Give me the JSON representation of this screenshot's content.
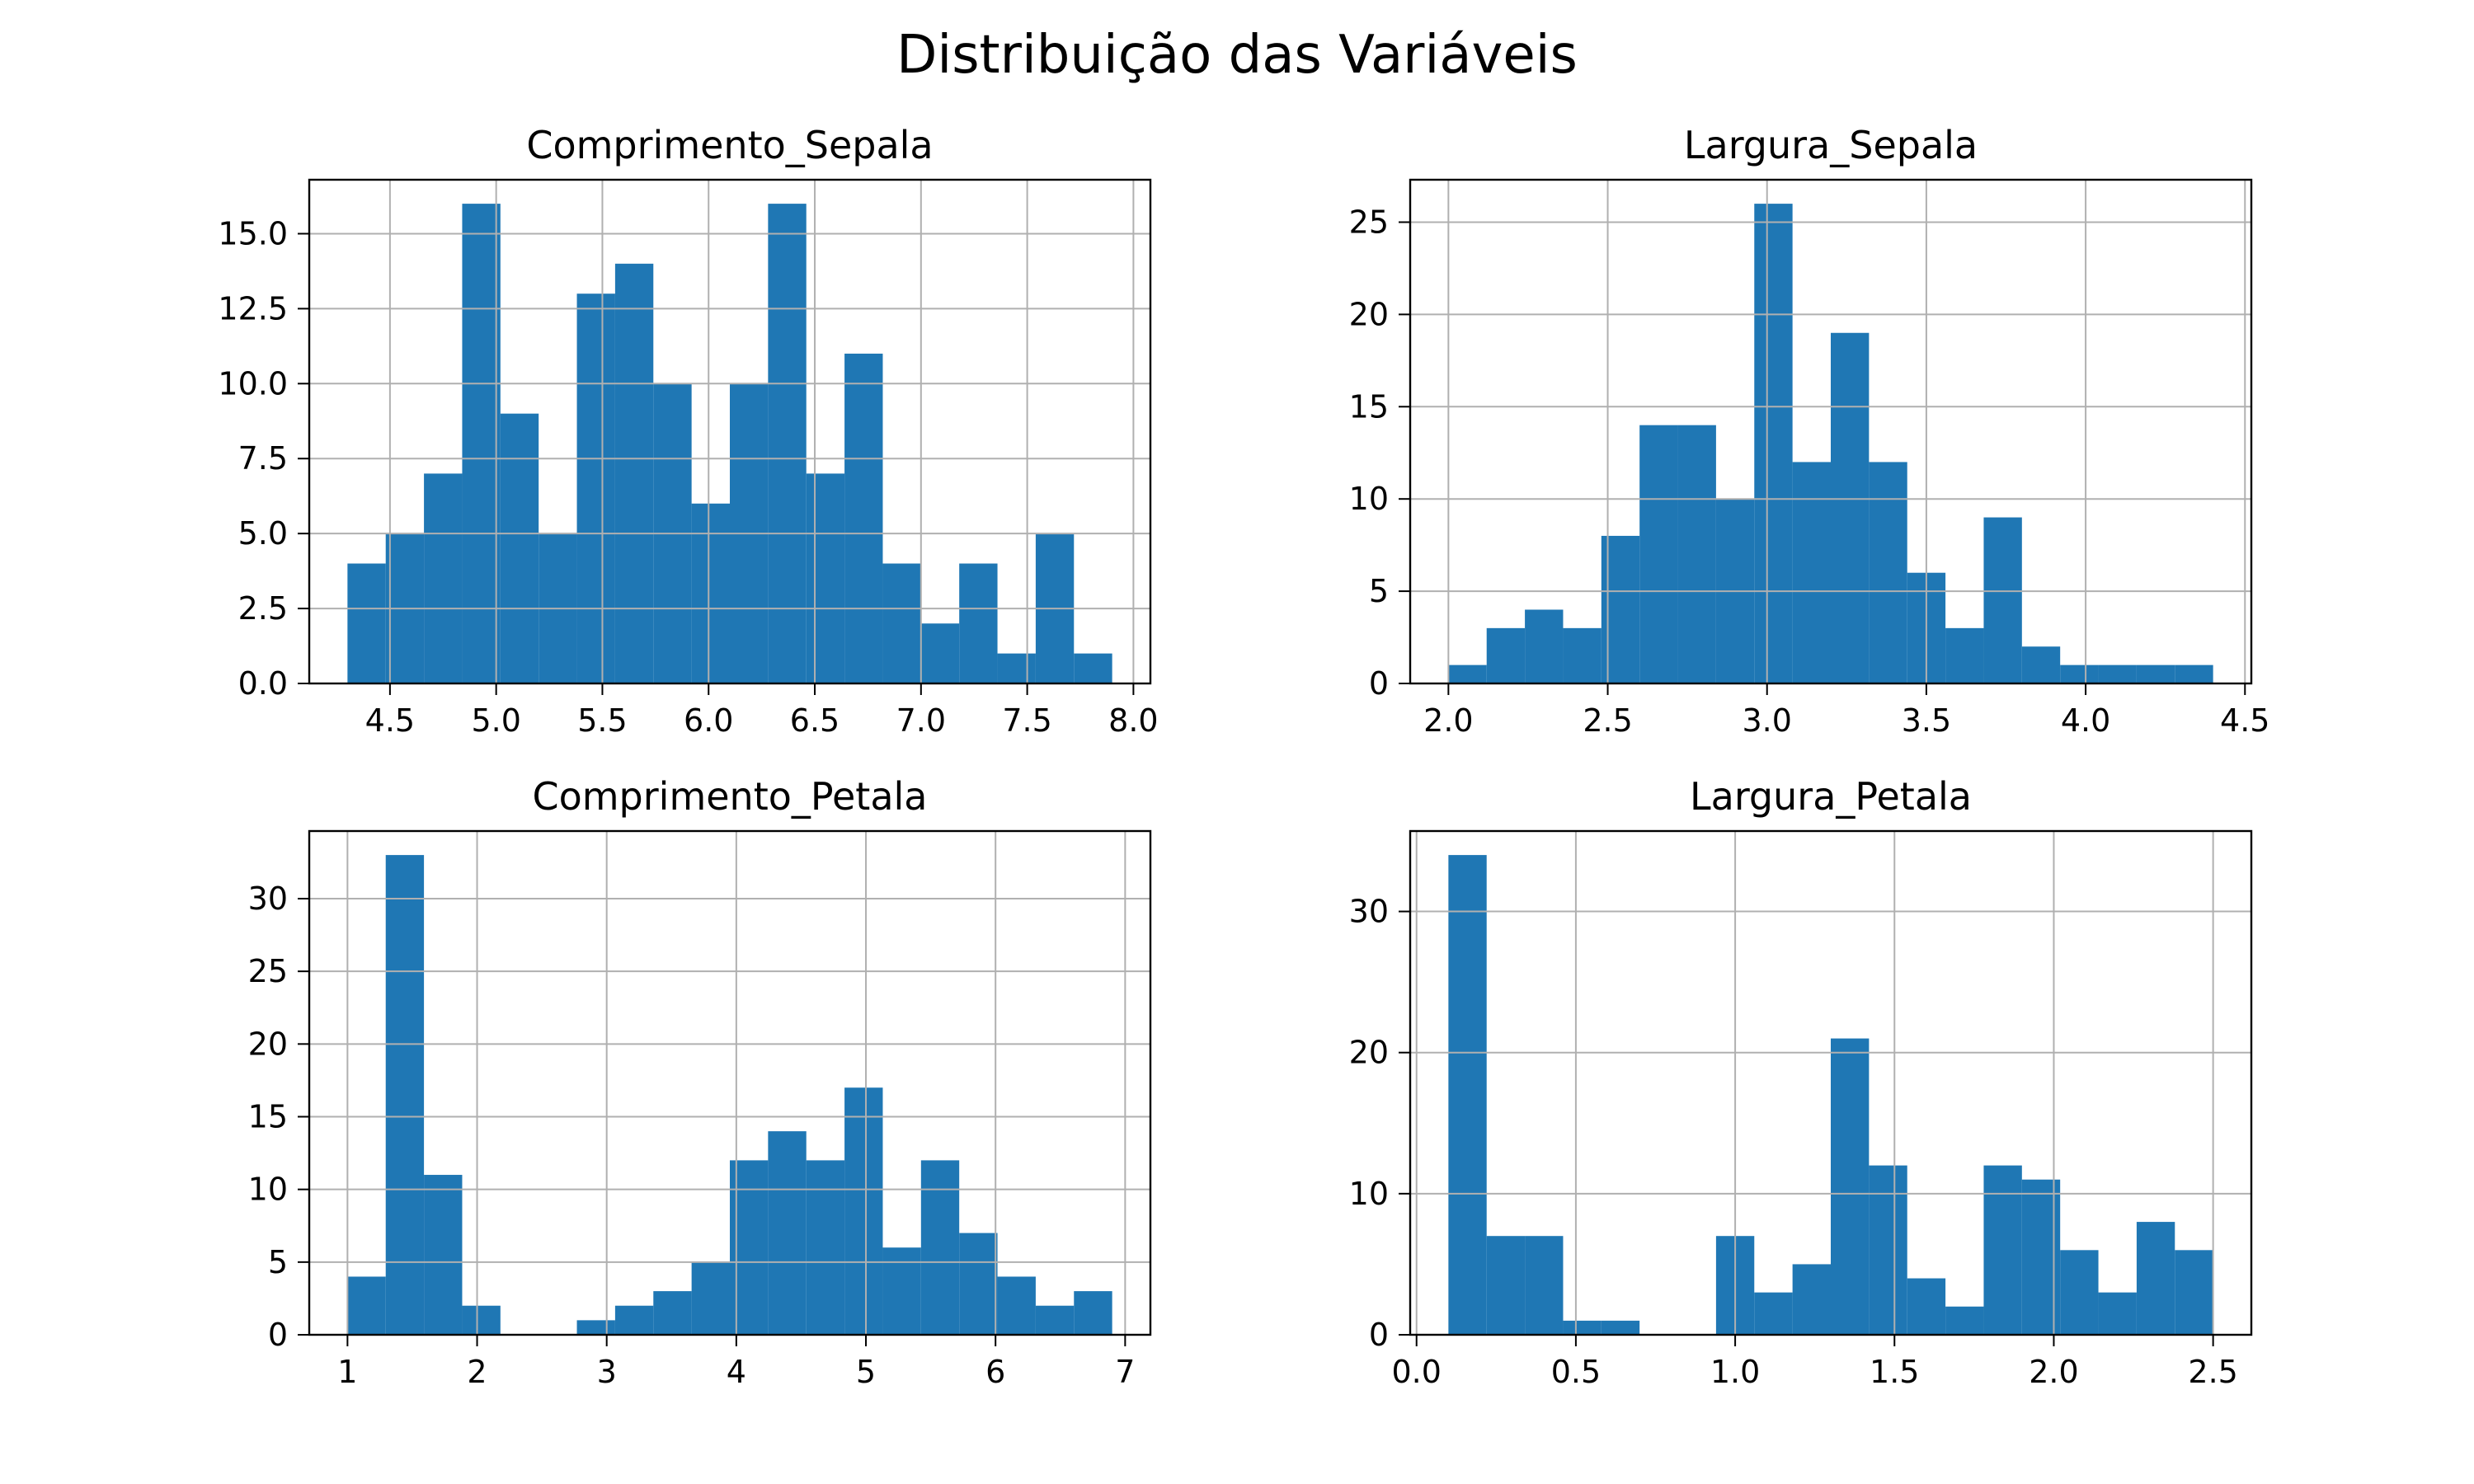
{
  "suptitle": "Distribuição das Variáveis",
  "colors": {
    "bar": "#1f77b4",
    "grid": "#b0b0b0",
    "axis": "#000000"
  },
  "chart_data": [
    {
      "type": "bar",
      "title": "Comprimento_Sepala",
      "xlim": [
        4.12,
        8.08
      ],
      "ylim": [
        0,
        16.8
      ],
      "xticks": [
        "4.5",
        "5.0",
        "5.5",
        "6.0",
        "6.5",
        "7.0",
        "7.5",
        "8.0"
      ],
      "yticks": [
        "0.0",
        "2.5",
        "5.0",
        "7.5",
        "10.0",
        "12.5",
        "15.0"
      ],
      "grid": true,
      "bin_edges": [
        4.3,
        4.48,
        4.66,
        4.84,
        5.02,
        5.2,
        5.38,
        5.56,
        5.74,
        5.92,
        6.1,
        6.28,
        6.46,
        6.64,
        6.82,
        7.0,
        7.18,
        7.36,
        7.54,
        7.72,
        7.9
      ],
      "values": [
        4,
        5,
        7,
        16,
        9,
        5,
        13,
        14,
        10,
        6,
        10,
        16,
        7,
        11,
        4,
        2,
        4,
        1,
        5,
        1
      ]
    },
    {
      "type": "bar",
      "title": "Largura_Sepala",
      "xlim": [
        1.88,
        4.52
      ],
      "ylim": [
        0,
        27.3
      ],
      "xticks": [
        "2.0",
        "2.5",
        "3.0",
        "3.5",
        "4.0",
        "4.5"
      ],
      "yticks": [
        "0",
        "5",
        "10",
        "15",
        "20",
        "25"
      ],
      "grid": true,
      "bin_edges": [
        2.0,
        2.12,
        2.24,
        2.36,
        2.48,
        2.6,
        2.72,
        2.84,
        2.96,
        3.08,
        3.2,
        3.32,
        3.44,
        3.56,
        3.68,
        3.8,
        3.92,
        4.04,
        4.16,
        4.28,
        4.4
      ],
      "values": [
        1,
        3,
        4,
        3,
        8,
        14,
        14,
        10,
        26,
        12,
        19,
        12,
        6,
        3,
        9,
        2,
        1,
        1,
        1,
        1
      ]
    },
    {
      "type": "bar",
      "title": "Comprimento_Petala",
      "xlim": [
        0.705,
        7.195
      ],
      "ylim": [
        0,
        34.65
      ],
      "xticks": [
        "1",
        "2",
        "3",
        "4",
        "5",
        "6",
        "7"
      ],
      "yticks": [
        "0",
        "5",
        "10",
        "15",
        "20",
        "25",
        "30"
      ],
      "grid": true,
      "bin_edges": [
        1.0,
        1.295,
        1.59,
        1.885,
        2.18,
        2.475,
        2.77,
        3.065,
        3.36,
        3.655,
        3.95,
        4.245,
        4.54,
        4.835,
        5.13,
        5.425,
        5.72,
        6.015,
        6.31,
        6.605,
        6.9
      ],
      "values": [
        4,
        33,
        11,
        2,
        0,
        0,
        1,
        2,
        3,
        5,
        12,
        14,
        12,
        17,
        6,
        12,
        7,
        4,
        2,
        3
      ]
    },
    {
      "type": "bar",
      "title": "Largura_Petala",
      "xlim": [
        -0.02,
        2.62
      ],
      "ylim": [
        0,
        35.7
      ],
      "xticks": [
        "0.0",
        "0.5",
        "1.0",
        "1.5",
        "2.0",
        "2.5"
      ],
      "yticks": [
        "0",
        "10",
        "20",
        "30"
      ],
      "grid": true,
      "bin_edges": [
        0.1,
        0.22,
        0.34,
        0.46,
        0.58,
        0.7,
        0.82,
        0.94,
        1.06,
        1.18,
        1.3,
        1.42,
        1.54,
        1.66,
        1.78,
        1.9,
        2.02,
        2.14,
        2.26,
        2.38,
        2.5
      ],
      "values": [
        34,
        7,
        7,
        1,
        1,
        0,
        0,
        7,
        3,
        5,
        21,
        12,
        4,
        2,
        12,
        11,
        6,
        3,
        8,
        6
      ]
    }
  ]
}
